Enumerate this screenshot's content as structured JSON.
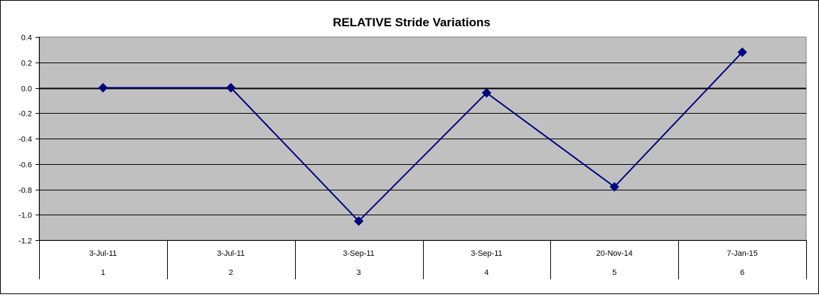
{
  "chart_data": {
    "type": "line",
    "title": "RELATIVE Stride Variations",
    "xlabel": "",
    "ylabel": "",
    "categories_level1": [
      "3-Jul-11",
      "3-Jul-11",
      "3-Sep-11",
      "3-Sep-11",
      "20-Nov-14",
      "7-Jan-15"
    ],
    "categories_level2": [
      "1",
      "2",
      "3",
      "4",
      "5",
      "6"
    ],
    "series": [
      {
        "values": [
          0.0,
          0.0,
          -1.05,
          -0.04,
          -0.78,
          0.28
        ]
      }
    ],
    "ylim": [
      -1.2,
      0.4
    ],
    "ytick_step": 0.2,
    "y_tick_labels": [
      "0.4",
      "0.2",
      "0.0",
      "-0.2",
      "-0.4",
      "-0.6",
      "-0.8",
      "-1.0",
      "-1.2"
    ],
    "grid": true,
    "legend": "none",
    "colors": {
      "plot_background": "#c0c0c0",
      "line": "#000080",
      "gridline": "#000000"
    }
  }
}
